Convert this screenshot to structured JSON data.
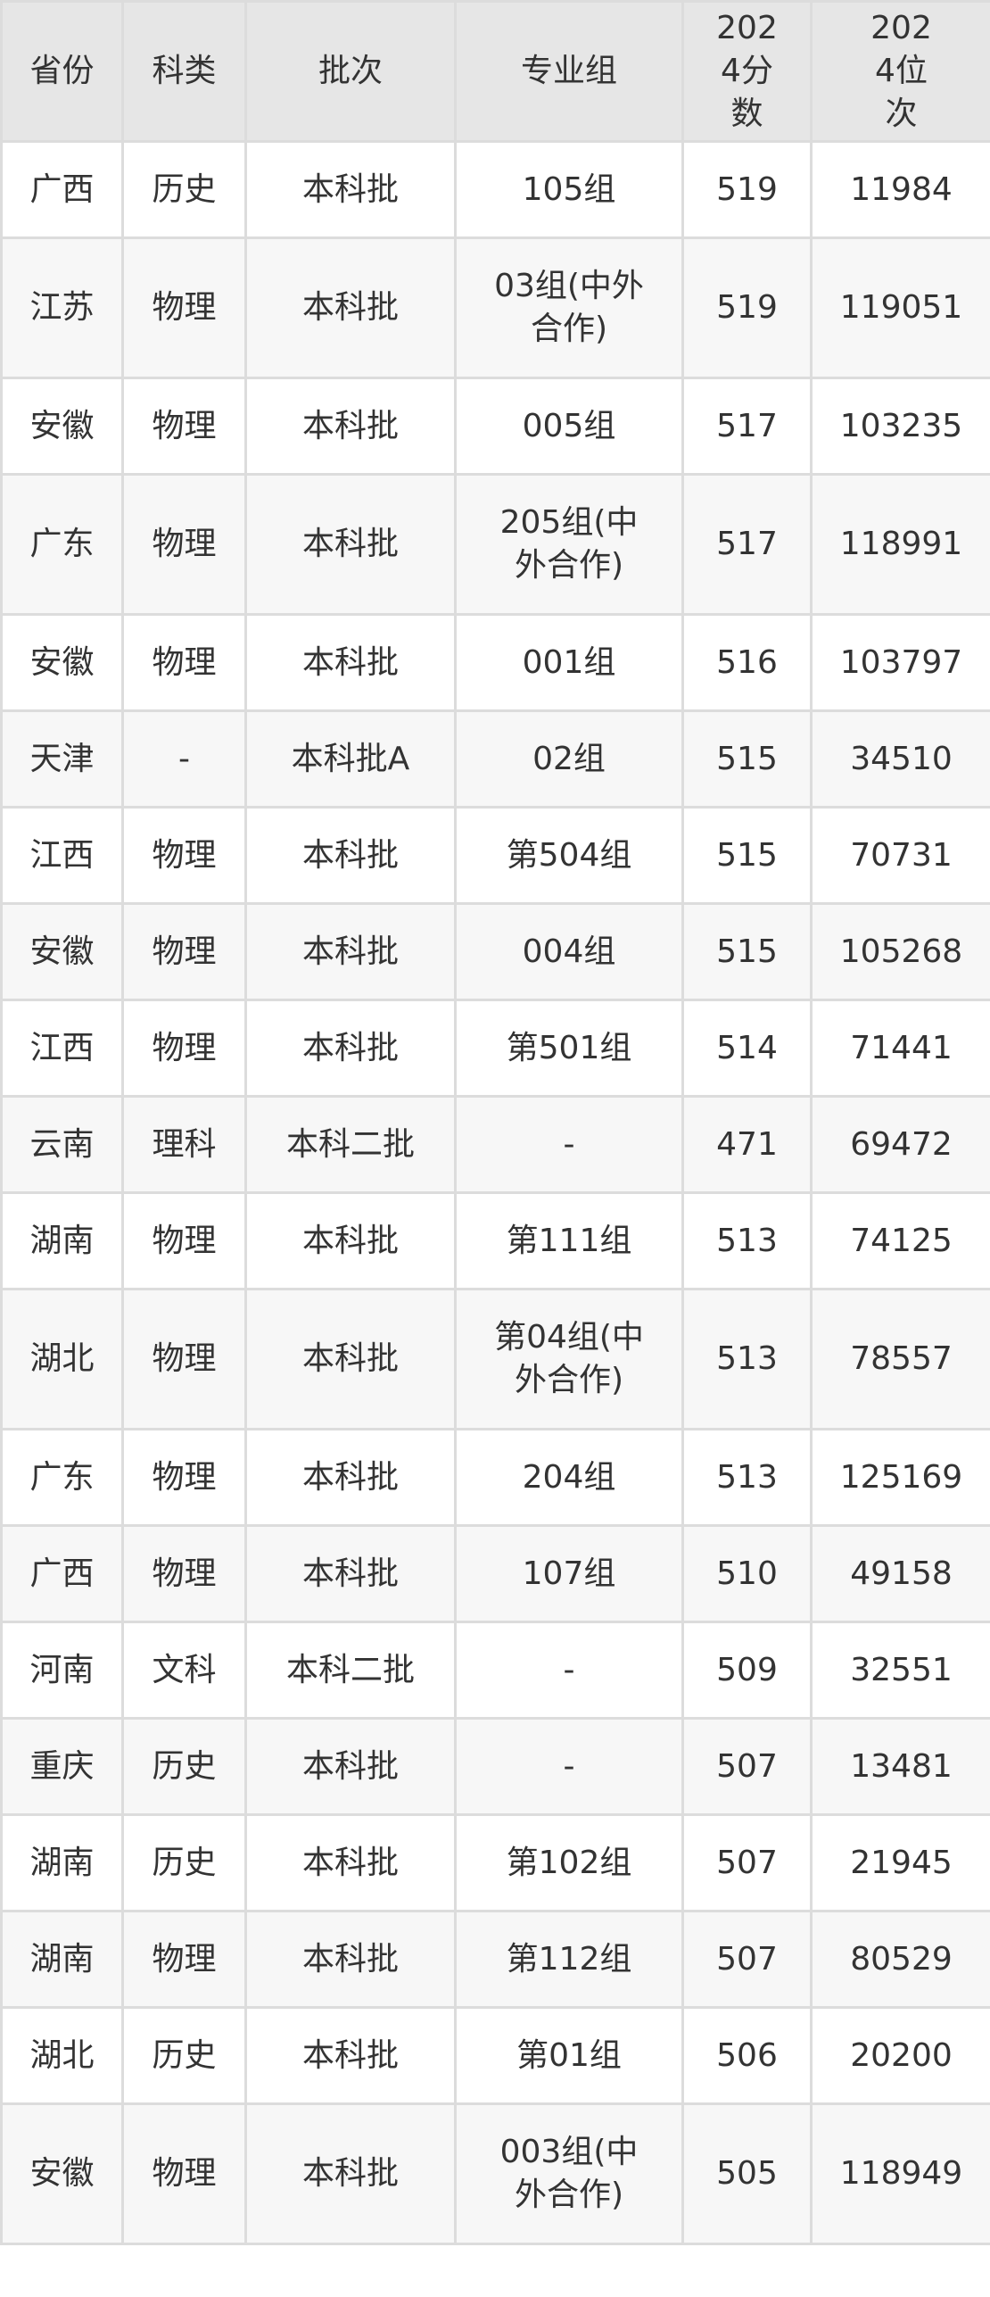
{
  "table": {
    "headers": [
      "省份",
      "科类",
      "批次",
      "专业组",
      "2024分数",
      "2024位次"
    ],
    "rows": [
      [
        "广西",
        "历史",
        "本科批",
        "105组",
        "519",
        "11984"
      ],
      [
        "江苏",
        "物理",
        "本科批",
        "03组(中外合作)",
        "519",
        "119051"
      ],
      [
        "安徽",
        "物理",
        "本科批",
        "005组",
        "517",
        "103235"
      ],
      [
        "广东",
        "物理",
        "本科批",
        "205组(中外合作)",
        "517",
        "118991"
      ],
      [
        "安徽",
        "物理",
        "本科批",
        "001组",
        "516",
        "103797"
      ],
      [
        "天津",
        "-",
        "本科批A",
        "02组",
        "515",
        "34510"
      ],
      [
        "江西",
        "物理",
        "本科批",
        "第504组",
        "515",
        "70731"
      ],
      [
        "安徽",
        "物理",
        "本科批",
        "004组",
        "515",
        "105268"
      ],
      [
        "江西",
        "物理",
        "本科批",
        "第501组",
        "514",
        "71441"
      ],
      [
        "云南",
        "理科",
        "本科二批",
        "-",
        "471",
        "69472"
      ],
      [
        "湖南",
        "物理",
        "本科批",
        "第111组",
        "513",
        "74125"
      ],
      [
        "湖北",
        "物理",
        "本科批",
        "第04组(中外合作)",
        "513",
        "78557"
      ],
      [
        "广东",
        "物理",
        "本科批",
        "204组",
        "513",
        "125169"
      ],
      [
        "广西",
        "物理",
        "本科批",
        "107组",
        "510",
        "49158"
      ],
      [
        "河南",
        "文科",
        "本科二批",
        "-",
        "509",
        "32551"
      ],
      [
        "重庆",
        "历史",
        "本科批",
        "-",
        "507",
        "13481"
      ],
      [
        "湖南",
        "历史",
        "本科批",
        "第102组",
        "507",
        "21945"
      ],
      [
        "湖南",
        "物理",
        "本科批",
        "第112组",
        "507",
        "80529"
      ],
      [
        "湖北",
        "历史",
        "本科批",
        "第01组",
        "506",
        "20200"
      ],
      [
        "安徽",
        "物理",
        "本科批",
        "003组(中外合作)",
        "505",
        "118949"
      ]
    ]
  },
  "colors": {
    "header_bg": "#e6e6e6",
    "stripe_bg": "#f7f7f7",
    "border": "#dcdcdc",
    "text": "#333333"
  }
}
